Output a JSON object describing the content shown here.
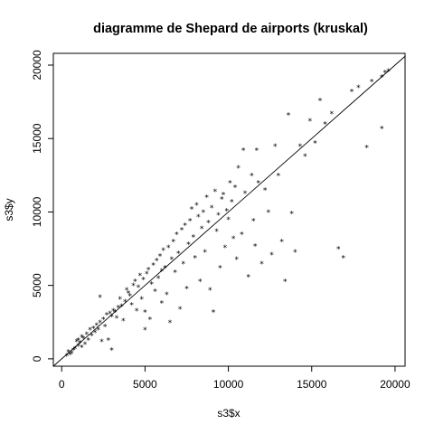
{
  "chart_data": {
    "type": "scatter",
    "title": "diagramme de Shepard de airports (kruskal)",
    "xlabel": "s3$x",
    "ylabel": "s3$y",
    "xlim": [
      -500,
      20600
    ],
    "ylim": [
      -500,
      20800
    ],
    "x_ticks": [
      0,
      5000,
      10000,
      15000,
      20000
    ],
    "y_ticks": [
      0,
      5000,
      10000,
      15000,
      20000
    ],
    "x_tick_labels": [
      "0",
      "5000",
      "10000",
      "15000",
      "20000"
    ],
    "y_tick_labels": [
      "0",
      "5000",
      "10000",
      "15000",
      "20000"
    ],
    "grid": false,
    "marker": "*",
    "reference_line": {
      "from": [
        -500,
        -500
      ],
      "to": [
        20600,
        20600
      ]
    },
    "points": [
      [
        300,
        200
      ],
      [
        400,
        500
      ],
      [
        500,
        300
      ],
      [
        600,
        400
      ],
      [
        700,
        600
      ],
      [
        800,
        700
      ],
      [
        900,
        1200
      ],
      [
        1000,
        900
      ],
      [
        1000,
        1300
      ],
      [
        1100,
        1100
      ],
      [
        1200,
        800
      ],
      [
        1200,
        1500
      ],
      [
        1300,
        1400
      ],
      [
        1400,
        1000
      ],
      [
        1500,
        1700
      ],
      [
        1600,
        1300
      ],
      [
        1700,
        2000
      ],
      [
        1800,
        1600
      ],
      [
        1900,
        2100
      ],
      [
        2000,
        1800
      ],
      [
        2100,
        2300
      ],
      [
        2200,
        2000
      ],
      [
        2300,
        4200
      ],
      [
        2300,
        2500
      ],
      [
        2400,
        1200
      ],
      [
        2500,
        2700
      ],
      [
        2600,
        2200
      ],
      [
        2700,
        3000
      ],
      [
        2800,
        1300
      ],
      [
        2900,
        3100
      ],
      [
        3000,
        600
      ],
      [
        3000,
        2900
      ],
      [
        3100,
        3300
      ],
      [
        3200,
        3200
      ],
      [
        3300,
        2800
      ],
      [
        3400,
        3500
      ],
      [
        3500,
        4100
      ],
      [
        3600,
        3600
      ],
      [
        3700,
        2600
      ],
      [
        3800,
        3900
      ],
      [
        3900,
        4700
      ],
      [
        4000,
        4500
      ],
      [
        4100,
        4300
      ],
      [
        4200,
        3700
      ],
      [
        4300,
        5000
      ],
      [
        4400,
        5300
      ],
      [
        4500,
        3300
      ],
      [
        4600,
        4900
      ],
      [
        4700,
        5700
      ],
      [
        4800,
        4100
      ],
      [
        4900,
        5400
      ],
      [
        5000,
        3200
      ],
      [
        5000,
        2000
      ],
      [
        5100,
        5800
      ],
      [
        5200,
        6100
      ],
      [
        5300,
        2700
      ],
      [
        5400,
        5100
      ],
      [
        5500,
        6400
      ],
      [
        5600,
        4600
      ],
      [
        5700,
        6700
      ],
      [
        5800,
        5500
      ],
      [
        5900,
        7000
      ],
      [
        6000,
        3800
      ],
      [
        6000,
        6000
      ],
      [
        6100,
        7400
      ],
      [
        6200,
        6200
      ],
      [
        6300,
        4400
      ],
      [
        6400,
        7600
      ],
      [
        6500,
        2500
      ],
      [
        6600,
        6800
      ],
      [
        6700,
        8000
      ],
      [
        6800,
        5900
      ],
      [
        6900,
        8500
      ],
      [
        7000,
        7200
      ],
      [
        7100,
        3400
      ],
      [
        7200,
        8800
      ],
      [
        7300,
        6500
      ],
      [
        7400,
        9100
      ],
      [
        7500,
        4800
      ],
      [
        7600,
        7800
      ],
      [
        7700,
        9400
      ],
      [
        7800,
        10200
      ],
      [
        7900,
        8300
      ],
      [
        8000,
        6900
      ],
      [
        8100,
        10500
      ],
      [
        8200,
        9700
      ],
      [
        8300,
        5300
      ],
      [
        8400,
        8900
      ],
      [
        8500,
        10000
      ],
      [
        8600,
        7300
      ],
      [
        8700,
        11000
      ],
      [
        8800,
        9300
      ],
      [
        8900,
        4700
      ],
      [
        9000,
        10300
      ],
      [
        9100,
        3200
      ],
      [
        9200,
        11400
      ],
      [
        9300,
        8700
      ],
      [
        9400,
        9800
      ],
      [
        9500,
        6200
      ],
      [
        9600,
        10900
      ],
      [
        9700,
        11200
      ],
      [
        9800,
        7600
      ],
      [
        9900,
        10100
      ],
      [
        10000,
        9500
      ],
      [
        10100,
        12000
      ],
      [
        10200,
        10700
      ],
      [
        10300,
        8200
      ],
      [
        10400,
        11700
      ],
      [
        10500,
        6800
      ],
      [
        10600,
        13000
      ],
      [
        10800,
        8500
      ],
      [
        10900,
        14200
      ],
      [
        11000,
        11300
      ],
      [
        11200,
        5600
      ],
      [
        11400,
        12500
      ],
      [
        11500,
        9400
      ],
      [
        11600,
        7700
      ],
      [
        11700,
        14200
      ],
      [
        11800,
        12000
      ],
      [
        12000,
        6500
      ],
      [
        12200,
        11500
      ],
      [
        12400,
        10000
      ],
      [
        12600,
        7100
      ],
      [
        12800,
        14500
      ],
      [
        13000,
        12500
      ],
      [
        13200,
        8000
      ],
      [
        13400,
        5300
      ],
      [
        13600,
        16600
      ],
      [
        13800,
        9900
      ],
      [
        14000,
        7300
      ],
      [
        14300,
        14500
      ],
      [
        14600,
        13800
      ],
      [
        14900,
        16200
      ],
      [
        15200,
        14700
      ],
      [
        15500,
        17600
      ],
      [
        15800,
        16000
      ],
      [
        16200,
        16700
      ],
      [
        16600,
        7500
      ],
      [
        16900,
        6900
      ],
      [
        17400,
        18200
      ],
      [
        17800,
        18500
      ],
      [
        18300,
        14400
      ],
      [
        18600,
        18900
      ],
      [
        19200,
        15700
      ],
      [
        19200,
        19200
      ],
      [
        19400,
        19500
      ],
      [
        19600,
        19600
      ]
    ]
  }
}
